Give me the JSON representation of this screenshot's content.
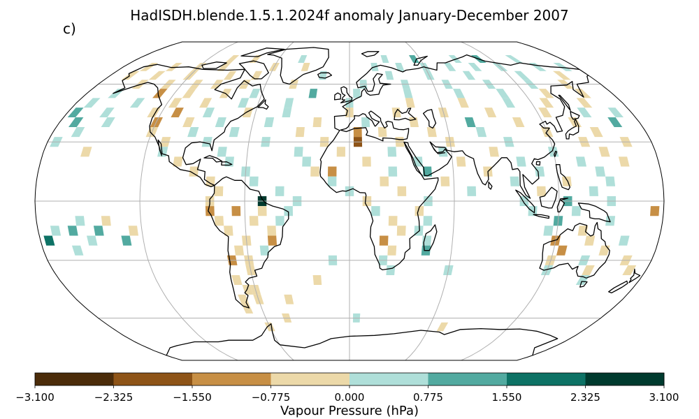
{
  "figure": {
    "title": "HadISDH.blende.1.5.1.2024f anomaly January-December 2007",
    "panel_label": "c)"
  },
  "chart_data": {
    "type": "heatmap",
    "projection": "Robinson (global, centred on 0° longitude)",
    "grid_resolution_deg": 5,
    "colorbar": {
      "label": "Vapour Pressure (hPa)",
      "orientation": "horizontal",
      "boundaries": [
        -3.1,
        -2.325,
        -1.55,
        -0.775,
        0.0,
        0.775,
        1.55,
        2.325,
        3.1
      ],
      "tick_labels": [
        "−3.100",
        "−2.325",
        "−1.550",
        "−0.775",
        "0.000",
        "0.775",
        "1.550",
        "2.325",
        "3.100"
      ],
      "colors": [
        "#4b2c0a",
        "#8e5417",
        "#c78f45",
        "#ecd9a9",
        "#afdfd9",
        "#52aaa0",
        "#0d7265",
        "#003a2e"
      ]
    },
    "gridlines": {
      "shown": true,
      "meridians_deg": [
        -180,
        -120,
        -60,
        0,
        60,
        120,
        180
      ],
      "parallels_deg": [
        -60,
        -30,
        0,
        30,
        60
      ]
    },
    "cells": [
      {
        "lat": 75,
        "lon": -100,
        "class": 3
      },
      {
        "lat": 75,
        "lon": -80,
        "class": 3
      },
      {
        "lat": 75,
        "lon": -40,
        "class": 4
      },
      {
        "lat": 75,
        "lon": 30,
        "class": 4
      },
      {
        "lat": 75,
        "lon": 55,
        "class": 5
      },
      {
        "lat": 75,
        "lon": 90,
        "class": 4
      },
      {
        "lat": 75,
        "lon": 110,
        "class": 5
      },
      {
        "lat": 75,
        "lon": 140,
        "class": 4
      },
      {
        "lat": 70,
        "lon": -160,
        "class": 3
      },
      {
        "lat": 70,
        "lon": -140,
        "class": 3
      },
      {
        "lat": 70,
        "lon": -120,
        "class": 3
      },
      {
        "lat": 70,
        "lon": -100,
        "class": 3
      },
      {
        "lat": 70,
        "lon": -60,
        "class": 3
      },
      {
        "lat": 70,
        "lon": -35,
        "class": 3
      },
      {
        "lat": 70,
        "lon": 20,
        "class": 4
      },
      {
        "lat": 70,
        "lon": 40,
        "class": 4
      },
      {
        "lat": 70,
        "lon": 60,
        "class": 4
      },
      {
        "lat": 70,
        "lon": 80,
        "class": 4
      },
      {
        "lat": 70,
        "lon": 100,
        "class": 4
      },
      {
        "lat": 70,
        "lon": 120,
        "class": 4
      },
      {
        "lat": 70,
        "lon": 150,
        "class": 4
      },
      {
        "lat": 70,
        "lon": 170,
        "class": 4
      },
      {
        "lat": 65,
        "lon": -165,
        "class": 3
      },
      {
        "lat": 65,
        "lon": -145,
        "class": 3
      },
      {
        "lat": 65,
        "lon": -120,
        "class": 3
      },
      {
        "lat": 65,
        "lon": -90,
        "class": 3
      },
      {
        "lat": 65,
        "lon": -70,
        "class": 3
      },
      {
        "lat": 65,
        "lon": -20,
        "class": 4
      },
      {
        "lat": 65,
        "lon": 30,
        "class": 4
      },
      {
        "lat": 65,
        "lon": 60,
        "class": 4
      },
      {
        "lat": 65,
        "lon": 90,
        "class": 4
      },
      {
        "lat": 65,
        "lon": 130,
        "class": 4
      },
      {
        "lat": 65,
        "lon": 160,
        "class": 3
      },
      {
        "lat": 60,
        "lon": -150,
        "class": 3
      },
      {
        "lat": 60,
        "lon": -130,
        "class": 3
      },
      {
        "lat": 60,
        "lon": -110,
        "class": 3
      },
      {
        "lat": 60,
        "lon": -95,
        "class": 3
      },
      {
        "lat": 60,
        "lon": -75,
        "class": 3
      },
      {
        "lat": 60,
        "lon": -40,
        "class": 3
      },
      {
        "lat": 60,
        "lon": 10,
        "class": 4
      },
      {
        "lat": 60,
        "lon": 40,
        "class": 4
      },
      {
        "lat": 60,
        "lon": 70,
        "class": 4
      },
      {
        "lat": 60,
        "lon": 100,
        "class": 4
      },
      {
        "lat": 60,
        "lon": 130,
        "class": 4
      },
      {
        "lat": 60,
        "lon": 155,
        "class": 3
      },
      {
        "lat": 55,
        "lon": -160,
        "class": 4
      },
      {
        "lat": 55,
        "lon": -130,
        "class": 2
      },
      {
        "lat": 55,
        "lon": -110,
        "class": 3
      },
      {
        "lat": 55,
        "lon": -85,
        "class": 3
      },
      {
        "lat": 55,
        "lon": -65,
        "class": 4
      },
      {
        "lat": 55,
        "lon": -25,
        "class": 5
      },
      {
        "lat": 55,
        "lon": 5,
        "class": 4
      },
      {
        "lat": 55,
        "lon": 40,
        "class": 4
      },
      {
        "lat": 55,
        "lon": 75,
        "class": 4
      },
      {
        "lat": 55,
        "lon": 105,
        "class": 4
      },
      {
        "lat": 55,
        "lon": 135,
        "class": 3
      },
      {
        "lat": 55,
        "lon": 160,
        "class": 3
      },
      {
        "lat": 50,
        "lon": -170,
        "class": 4
      },
      {
        "lat": 50,
        "lon": -140,
        "class": 4
      },
      {
        "lat": 50,
        "lon": -115,
        "class": 3
      },
      {
        "lat": 50,
        "lon": -95,
        "class": 3
      },
      {
        "lat": 50,
        "lon": -70,
        "class": 4
      },
      {
        "lat": 50,
        "lon": -40,
        "class": 4
      },
      {
        "lat": 50,
        "lon": 0,
        "class": 4
      },
      {
        "lat": 50,
        "lon": 40,
        "class": 3
      },
      {
        "lat": 50,
        "lon": 75,
        "class": 3
      },
      {
        "lat": 50,
        "lon": 105,
        "class": 4
      },
      {
        "lat": 50,
        "lon": 130,
        "class": 3
      },
      {
        "lat": 50,
        "lon": 155,
        "class": 3
      },
      {
        "lat": 45,
        "lon": -175,
        "class": 5
      },
      {
        "lat": 45,
        "lon": -155,
        "class": 4
      },
      {
        "lat": 45,
        "lon": -125,
        "class": 3
      },
      {
        "lat": 45,
        "lon": -110,
        "class": 2
      },
      {
        "lat": 45,
        "lon": -90,
        "class": 4
      },
      {
        "lat": 45,
        "lon": -65,
        "class": 3
      },
      {
        "lat": 45,
        "lon": -40,
        "class": 4
      },
      {
        "lat": 45,
        "lon": 0,
        "class": 3
      },
      {
        "lat": 45,
        "lon": 30,
        "class": 3
      },
      {
        "lat": 45,
        "lon": 60,
        "class": 3
      },
      {
        "lat": 45,
        "lon": 90,
        "class": 3
      },
      {
        "lat": 45,
        "lon": 125,
        "class": 3
      },
      {
        "lat": 45,
        "lon": 150,
        "class": 4
      },
      {
        "lat": 45,
        "lon": 170,
        "class": 4
      },
      {
        "lat": 40,
        "lon": -170,
        "class": 5
      },
      {
        "lat": 40,
        "lon": -150,
        "class": 4
      },
      {
        "lat": 40,
        "lon": -120,
        "class": 2
      },
      {
        "lat": 40,
        "lon": -100,
        "class": 3
      },
      {
        "lat": 40,
        "lon": -80,
        "class": 4
      },
      {
        "lat": 40,
        "lon": -50,
        "class": 4
      },
      {
        "lat": 40,
        "lon": -20,
        "class": 3
      },
      {
        "lat": 40,
        "lon": 10,
        "class": 4
      },
      {
        "lat": 40,
        "lon": 40,
        "class": 3
      },
      {
        "lat": 40,
        "lon": 75,
        "class": 5
      },
      {
        "lat": 40,
        "lon": 105,
        "class": 3
      },
      {
        "lat": 40,
        "lon": 140,
        "class": 3
      },
      {
        "lat": 40,
        "lon": 165,
        "class": 5
      },
      {
        "lat": 35,
        "lon": -165,
        "class": 4
      },
      {
        "lat": 35,
        "lon": -120,
        "class": 3
      },
      {
        "lat": 35,
        "lon": -95,
        "class": 4
      },
      {
        "lat": 35,
        "lon": -70,
        "class": 4
      },
      {
        "lat": 35,
        "lon": -30,
        "class": 3
      },
      {
        "lat": 35,
        "lon": 5,
        "class": 2
      },
      {
        "lat": 35,
        "lon": 20,
        "class": 3
      },
      {
        "lat": 35,
        "lon": 50,
        "class": 3
      },
      {
        "lat": 35,
        "lon": 80,
        "class": 4
      },
      {
        "lat": 35,
        "lon": 120,
        "class": 3
      },
      {
        "lat": 35,
        "lon": 150,
        "class": 3
      },
      {
        "lat": 30,
        "lon": -175,
        "class": 4
      },
      {
        "lat": 30,
        "lon": -110,
        "class": 3
      },
      {
        "lat": 30,
        "lon": -85,
        "class": 4
      },
      {
        "lat": 30,
        "lon": -50,
        "class": 4
      },
      {
        "lat": 30,
        "lon": -15,
        "class": 3
      },
      {
        "lat": 30,
        "lon": 5,
        "class": 1
      },
      {
        "lat": 30,
        "lon": 30,
        "class": 3
      },
      {
        "lat": 30,
        "lon": 60,
        "class": 3
      },
      {
        "lat": 30,
        "lon": 95,
        "class": 4
      },
      {
        "lat": 30,
        "lon": 140,
        "class": 3
      },
      {
        "lat": 30,
        "lon": 165,
        "class": 3
      },
      {
        "lat": 25,
        "lon": -155,
        "class": 3
      },
      {
        "lat": 25,
        "lon": -110,
        "class": 4
      },
      {
        "lat": 25,
        "lon": -75,
        "class": 4
      },
      {
        "lat": 25,
        "lon": -30,
        "class": 4
      },
      {
        "lat": 25,
        "lon": -5,
        "class": 3
      },
      {
        "lat": 25,
        "lon": 25,
        "class": 4
      },
      {
        "lat": 25,
        "lon": 55,
        "class": 4
      },
      {
        "lat": 25,
        "lon": 85,
        "class": 3
      },
      {
        "lat": 25,
        "lon": 120,
        "class": 4
      },
      {
        "lat": 25,
        "lon": 150,
        "class": 3
      },
      {
        "lat": 20,
        "lon": -100,
        "class": 3
      },
      {
        "lat": 20,
        "lon": -70,
        "class": 4
      },
      {
        "lat": 20,
        "lon": -25,
        "class": 4
      },
      {
        "lat": 20,
        "lon": 10,
        "class": 3
      },
      {
        "lat": 20,
        "lon": 40,
        "class": 4
      },
      {
        "lat": 20,
        "lon": 65,
        "class": 3
      },
      {
        "lat": 20,
        "lon": 100,
        "class": 4
      },
      {
        "lat": 20,
        "lon": 135,
        "class": 4
      },
      {
        "lat": 20,
        "lon": 160,
        "class": 3
      },
      {
        "lat": 15,
        "lon": -90,
        "class": 3
      },
      {
        "lat": 15,
        "lon": -60,
        "class": 4
      },
      {
        "lat": 15,
        "lon": -20,
        "class": 3
      },
      {
        "lat": 15,
        "lon": -10,
        "class": 2
      },
      {
        "lat": 15,
        "lon": 25,
        "class": 4
      },
      {
        "lat": 15,
        "lon": 45,
        "class": 5
      },
      {
        "lat": 15,
        "lon": 80,
        "class": 3
      },
      {
        "lat": 15,
        "lon": 110,
        "class": 4
      },
      {
        "lat": 15,
        "lon": 145,
        "class": 4
      },
      {
        "lat": 10,
        "lon": -80,
        "class": 3
      },
      {
        "lat": 10,
        "lon": -55,
        "class": 4
      },
      {
        "lat": 10,
        "lon": -10,
        "class": 4
      },
      {
        "lat": 10,
        "lon": 20,
        "class": 3
      },
      {
        "lat": 10,
        "lon": 55,
        "class": 3
      },
      {
        "lat": 10,
        "lon": 95,
        "class": 4
      },
      {
        "lat": 10,
        "lon": 125,
        "class": 3
      },
      {
        "lat": 10,
        "lon": 150,
        "class": 4
      },
      {
        "lat": 5,
        "lon": -75,
        "class": 3
      },
      {
        "lat": 5,
        "lon": -40,
        "class": 4
      },
      {
        "lat": 5,
        "lon": 0,
        "class": 4
      },
      {
        "lat": 5,
        "lon": 30,
        "class": 3
      },
      {
        "lat": 5,
        "lon": 70,
        "class": 4
      },
      {
        "lat": 5,
        "lon": 110,
        "class": 3
      },
      {
        "lat": 5,
        "lon": 140,
        "class": 4
      },
      {
        "lat": 0,
        "lon": -80,
        "class": 3
      },
      {
        "lat": 0,
        "lon": -50,
        "class": 7
      },
      {
        "lat": 0,
        "lon": -30,
        "class": 4
      },
      {
        "lat": 0,
        "lon": 10,
        "class": 3
      },
      {
        "lat": 0,
        "lon": 45,
        "class": 4
      },
      {
        "lat": 0,
        "lon": 100,
        "class": 4
      },
      {
        "lat": 0,
        "lon": 125,
        "class": 5
      },
      {
        "lat": 0,
        "lon": 150,
        "class": 4
      },
      {
        "lat": -5,
        "lon": -80,
        "class": 2
      },
      {
        "lat": -5,
        "lon": -65,
        "class": 2
      },
      {
        "lat": -5,
        "lon": -50,
        "class": 3
      },
      {
        "lat": -5,
        "lon": -35,
        "class": 4
      },
      {
        "lat": -5,
        "lon": 15,
        "class": 4
      },
      {
        "lat": -5,
        "lon": 40,
        "class": 3
      },
      {
        "lat": -5,
        "lon": 105,
        "class": 4
      },
      {
        "lat": -5,
        "lon": 130,
        "class": 4
      },
      {
        "lat": -5,
        "lon": 175,
        "class": 2
      },
      {
        "lat": -10,
        "lon": -155,
        "class": 4
      },
      {
        "lat": -10,
        "lon": -140,
        "class": 3
      },
      {
        "lat": -10,
        "lon": -75,
        "class": 3
      },
      {
        "lat": -10,
        "lon": -55,
        "class": 3
      },
      {
        "lat": -10,
        "lon": -40,
        "class": 4
      },
      {
        "lat": -10,
        "lon": 25,
        "class": 3
      },
      {
        "lat": -10,
        "lon": 45,
        "class": 4
      },
      {
        "lat": -10,
        "lon": 120,
        "class": 5
      },
      {
        "lat": -10,
        "lon": 150,
        "class": 4
      },
      {
        "lat": -15,
        "lon": -170,
        "class": 4
      },
      {
        "lat": -15,
        "lon": -160,
        "class": 5
      },
      {
        "lat": -15,
        "lon": -145,
        "class": 5
      },
      {
        "lat": -15,
        "lon": -125,
        "class": 3
      },
      {
        "lat": -15,
        "lon": -70,
        "class": 3
      },
      {
        "lat": -15,
        "lon": -45,
        "class": 3
      },
      {
        "lat": -15,
        "lon": 30,
        "class": 3
      },
      {
        "lat": -15,
        "lon": 40,
        "class": 4
      },
      {
        "lat": -15,
        "lon": 115,
        "class": 4
      },
      {
        "lat": -15,
        "lon": 135,
        "class": 3
      },
      {
        "lat": -20,
        "lon": -175,
        "class": 6
      },
      {
        "lat": -20,
        "lon": -150,
        "class": 4
      },
      {
        "lat": -20,
        "lon": -130,
        "class": 5
      },
      {
        "lat": -20,
        "lon": -60,
        "class": 3
      },
      {
        "lat": -20,
        "lon": -45,
        "class": 2
      },
      {
        "lat": -20,
        "lon": 20,
        "class": 2
      },
      {
        "lat": -20,
        "lon": 45,
        "class": 4
      },
      {
        "lat": -20,
        "lon": 120,
        "class": 2
      },
      {
        "lat": -20,
        "lon": 140,
        "class": 3
      },
      {
        "lat": -20,
        "lon": 160,
        "class": 4
      },
      {
        "lat": -25,
        "lon": -160,
        "class": 4
      },
      {
        "lat": -25,
        "lon": -65,
        "class": 3
      },
      {
        "lat": -25,
        "lon": -50,
        "class": 4
      },
      {
        "lat": -25,
        "lon": 25,
        "class": 3
      },
      {
        "lat": -25,
        "lon": 45,
        "class": 5
      },
      {
        "lat": -25,
        "lon": 125,
        "class": 2
      },
      {
        "lat": -25,
        "lon": 150,
        "class": 3
      },
      {
        "lat": -30,
        "lon": -70,
        "class": 2
      },
      {
        "lat": -30,
        "lon": -60,
        "class": 3
      },
      {
        "lat": -30,
        "lon": -10,
        "class": 4
      },
      {
        "lat": -30,
        "lon": 20,
        "class": 4
      },
      {
        "lat": -30,
        "lon": 120,
        "class": 3
      },
      {
        "lat": -30,
        "lon": 140,
        "class": 4
      },
      {
        "lat": -30,
        "lon": 165,
        "class": 3
      },
      {
        "lat": -35,
        "lon": -60,
        "class": 3
      },
      {
        "lat": -35,
        "lon": 25,
        "class": 4
      },
      {
        "lat": -35,
        "lon": 60,
        "class": 4
      },
      {
        "lat": -35,
        "lon": 120,
        "class": 4
      },
      {
        "lat": -35,
        "lon": 145,
        "class": 3
      },
      {
        "lat": -35,
        "lon": 170,
        "class": 3
      },
      {
        "lat": -40,
        "lon": -70,
        "class": 3
      },
      {
        "lat": -40,
        "lon": -20,
        "class": 3
      },
      {
        "lat": -40,
        "lon": 145,
        "class": 4
      },
      {
        "lat": -45,
        "lon": -65,
        "class": 3
      },
      {
        "lat": -45,
        "lon": -60,
        "class": 3
      },
      {
        "lat": -50,
        "lon": -70,
        "class": 3
      },
      {
        "lat": -50,
        "lon": -60,
        "class": 3
      },
      {
        "lat": -50,
        "lon": -40,
        "class": 3
      },
      {
        "lat": -55,
        "lon": -70,
        "class": 3
      },
      {
        "lat": -60,
        "lon": -45,
        "class": 3
      },
      {
        "lat": -60,
        "lon": 5,
        "class": 4
      },
      {
        "lat": -65,
        "lon": -60,
        "class": 3
      },
      {
        "lat": -65,
        "lon": 70,
        "class": 3
      }
    ]
  }
}
